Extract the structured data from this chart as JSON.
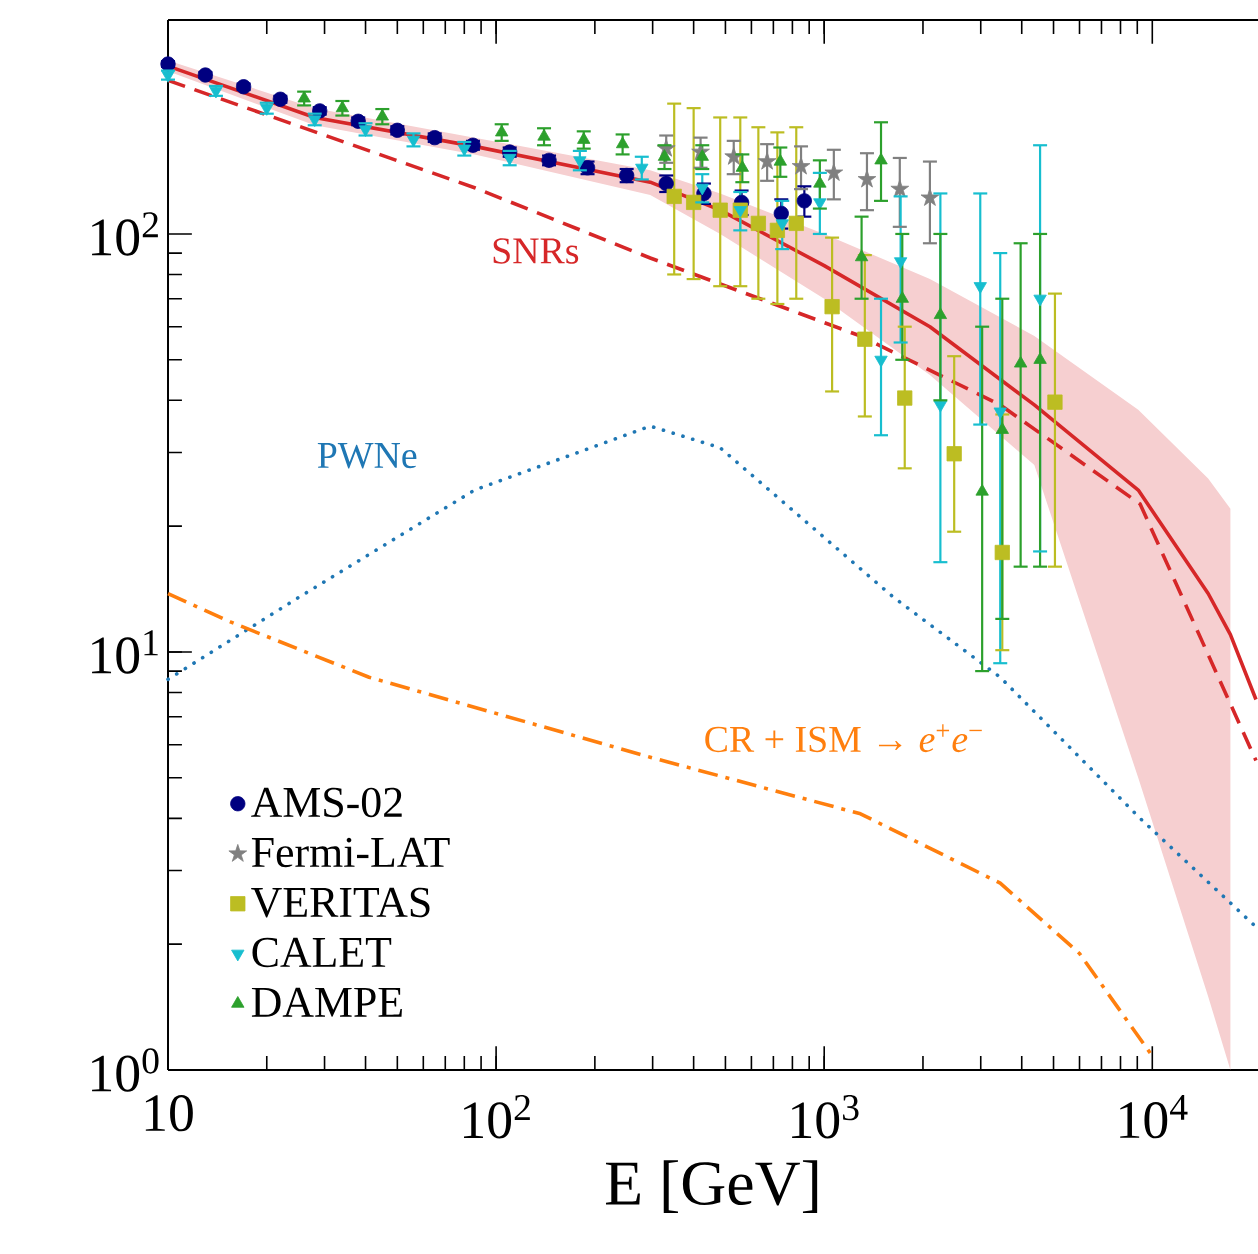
{
  "chart_data": {
    "type": "line",
    "xlabel": "E [GeV]",
    "log": "xy",
    "xlim": [
      10,
      21000
    ],
    "ylim": [
      1,
      325
    ],
    "xticks": [
      10,
      {
        "value": 100,
        "label": "10$^{2}$"
      },
      {
        "value": 1000,
        "label": "10$^{3}$"
      },
      {
        "value": 10000,
        "label": "10$^{4}$"
      }
    ],
    "yticks": [
      {
        "value": 1,
        "label": "10$^{0}$"
      },
      {
        "value": 10,
        "label": "10$^{1}$"
      },
      {
        "value": 100,
        "label": "10$^{2}$"
      }
    ],
    "legend": "bottom left",
    "series": [
      {
        "color": "#d62728",
        "line_style": "solid",
        "marker": "none",
        "x": [
          10,
          28,
          86,
          295,
          482,
          1000,
          2100,
          4370,
          9060,
          14800,
          17300,
          20700
        ],
        "values": [
          252,
          190,
          162,
          133,
          114,
          84,
          60,
          39,
          24.4,
          13.8,
          11,
          7.7
        ],
        "lower": [
          245,
          182,
          155,
          124,
          100,
          70,
          46,
          28,
          5,
          1.5,
          1,
          null
        ],
        "upper": [
          260,
          200,
          170,
          142,
          125,
          100,
          78,
          57,
          38,
          26,
          22,
          null
        ]
      },
      {
        "name": "SNRs",
        "color": "#d62728",
        "line_style": "dashed",
        "marker": "none",
        "x": [
          10,
          86,
          295,
          1290,
          3440,
          9180,
          20700
        ],
        "values": [
          233,
          129,
          87.6,
          57,
          39,
          22.6,
          5.5
        ]
      },
      {
        "name": "PWNe",
        "color": "#1f77b4",
        "line_style": "dotted",
        "marker": "none",
        "x": [
          10,
          25,
          86,
          295,
          482,
          1630,
          3440,
          9180,
          20700
        ],
        "values": [
          8.6,
          13.5,
          24.4,
          34.7,
          30.8,
          13.5,
          8.7,
          4.0,
          2.2
        ]
      },
      {
        "name": "CR + ISM → *e*$^{+}$*e*$^{−}$",
        "color": "#ff7f0e",
        "line_style": "dashdot",
        "marker": "none",
        "x": [
          10,
          15.5,
          41,
          295,
          1290,
          3440,
          6000,
          10000
        ],
        "values": [
          13.8,
          11.8,
          8.7,
          5.6,
          4.1,
          2.8,
          1.9,
          1.08
        ]
      },
      {
        "type": "scatter",
        "name": "AMS-02",
        "color": "#000080",
        "marker": "circle",
        "x": [
          10,
          13,
          17,
          22,
          29,
          38,
          50,
          65,
          85,
          110,
          145,
          190,
          250,
          330,
          430,
          560,
          740,
          870
        ],
        "values": [
          255,
          240,
          225,
          210,
          197,
          186,
          177,
          170,
          163,
          157,
          150,
          144,
          138,
          132,
          125,
          119,
          112,
          120
        ],
        "errors": [
          4,
          4,
          4,
          4,
          4,
          4,
          4,
          4,
          4,
          4,
          4,
          5,
          5,
          6,
          7,
          8,
          9,
          10
        ]
      },
      {
        "type": "scatter",
        "name": "Fermi-LAT",
        "color": "#808080",
        "marker": "star",
        "x": [
          330,
          420,
          530,
          670,
          850,
          1070,
          1350,
          1700,
          2100
        ],
        "values": [
          160,
          157,
          153,
          149,
          145,
          140,
          135,
          128,
          122
        ],
        "errors": [
          12,
          13,
          14,
          15,
          17,
          19,
          21,
          24,
          27
        ]
      },
      {
        "type": "scatter",
        "name": "VERITAS",
        "color": "#bcbd22",
        "marker": "square",
        "x": [
          349,
          400,
          482,
          555,
          630,
          720,
          822,
          1057,
          1330,
          1760,
          2490,
          3490,
          5050
        ],
        "values": [
          123,
          119,
          114,
          114,
          106,
          102,
          106,
          67,
          56,
          40.5,
          29.8,
          17.3,
          39.6
        ],
        "errors": [
          [
            80,
            205
          ],
          [
            78,
            200
          ],
          [
            75,
            190
          ],
          [
            75,
            190
          ],
          [
            70,
            180
          ],
          [
            68,
            175
          ],
          [
            70,
            180
          ],
          [
            42,
            98
          ],
          [
            36.6,
            89
          ],
          [
            27.5,
            60
          ],
          [
            19.4,
            51
          ],
          [
            10.1,
            37
          ],
          [
            16,
            72
          ]
        ]
      },
      {
        "type": "scatter",
        "name": "CALET",
        "color": "#17becf",
        "marker": "triangle-down",
        "x": [
          10,
          14,
          20,
          28,
          40,
          56,
          80,
          110,
          180,
          278,
          425,
          555,
          745,
          970,
          1490,
          1710,
          2260,
          2990,
          3440,
          4550
        ],
        "values": [
          240,
          220,
          200,
          188,
          178,
          168,
          160,
          152,
          150,
          144,
          129,
          114,
          106,
          119,
          50,
          86,
          39,
          75,
          37.6,
          70
        ],
        "errors": [
          6,
          6,
          6,
          6,
          6,
          6,
          6,
          6,
          8,
          9,
          10,
          12,
          14,
          [
            100,
            140
          ],
          [
            33,
            70
          ],
          [
            55,
            123
          ],
          [
            16.4,
            125
          ],
          [
            35,
            125
          ],
          [
            9.4,
            90
          ],
          [
            17.4,
            163
          ]
        ]
      },
      {
        "type": "scatter",
        "name": "DAMPE",
        "color": "#2ca02c",
        "marker": "triangle",
        "x": [
          26,
          34,
          45,
          104,
          140,
          185,
          243,
          326,
          425,
          563,
          735,
          970,
          1300,
          1490,
          1730,
          2260,
          3030,
          3490,
          3970,
          4550
        ],
        "values": [
          211,
          200,
          191,
          175,
          171,
          168,
          164,
          153,
          153,
          144,
          149,
          132,
          88,
          150,
          70,
          64,
          24.2,
          34,
          49,
          50
        ],
        "errors": [
          8,
          8,
          8,
          8,
          8,
          8,
          9,
          10,
          10,
          11,
          12,
          [
            115,
            150
          ],
          [
            70,
            110
          ],
          [
            120,
            185
          ],
          [
            50,
            100
          ],
          [
            40,
            100
          ],
          [
            9,
            60
          ],
          [
            12,
            70
          ],
          [
            16,
            95
          ],
          [
            16,
            100
          ]
        ]
      }
    ]
  }
}
